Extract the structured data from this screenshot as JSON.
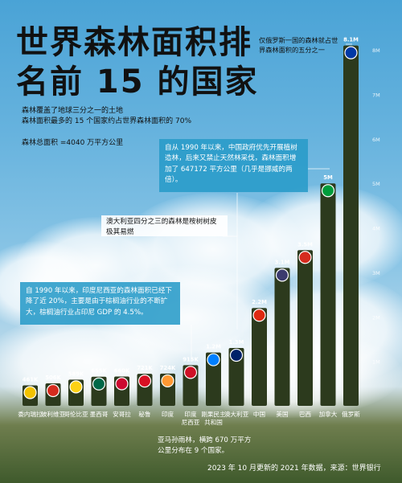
{
  "title_line1": "世界森林面积排",
  "title_line2": "名前 15 的国家",
  "subtitle_line1": "森林覆盖了地球三分之一的土地",
  "subtitle_line2": "森林面积最多的 15 个国家约占世界森林面积的 70%",
  "total_area": "森林总面积 =4040 万平方公里",
  "note_russia": "仅俄罗斯一国的森林就占世界森林面积的五分之一",
  "note_china": "自从 1990 年以来，中国政府优先开展植树造林，后来又禁止天然林采伐，森林面积增加了 647172 平方公里（几乎是挪威的两倍）。",
  "note_australia": "澳大利亚四分之三的森林是桉树树皮极其易燃",
  "note_indonesia": "自 1990 年以来，印度尼西亚的森林面积已经下降了近 20%，主要是由于棕榈油行业的不断扩大，棕榈油行业占印尼 GDP 的 4.5%。",
  "note_amazon": "亚马孙雨林，横跨 670 万平方公里分布在 9 个国家。",
  "source": "2023 年 10 月更新的 2021 年数据，来源：世界银行",
  "chart_data": {
    "type": "bar",
    "categories": [
      "委内瑞拉",
      "玻利维亚",
      "哥伦比亚",
      "墨西哥",
      "安哥拉",
      "秘鲁",
      "印度",
      "印度尼西亚",
      "刚果民主共和国",
      "澳大利亚",
      "中国",
      "美国",
      "巴西",
      "加拿大",
      "俄罗斯"
    ],
    "values": [
      461000,
      506000,
      589000,
      655000,
      660000,
      721000,
      724000,
      915000,
      1200000,
      1300000,
      2200000,
      3100000,
      3500000,
      5000000,
      8100000
    ],
    "data_labels": [
      "461K",
      "506K",
      "589K",
      "655K",
      "660K",
      "721K",
      "724K",
      "915K",
      "1.2M",
      "1.3M",
      "2.2M",
      "3.1M",
      "3.5M",
      "5M",
      "8.1M"
    ],
    "y_ticks": [
      "1M",
      "2M",
      "3M",
      "4M",
      "5M",
      "6M",
      "7M",
      "8M"
    ],
    "ylim": [
      0,
      8400000
    ],
    "colors": {
      "bar": "#2c3a1d",
      "bar_top": "#3c4c28"
    }
  }
}
